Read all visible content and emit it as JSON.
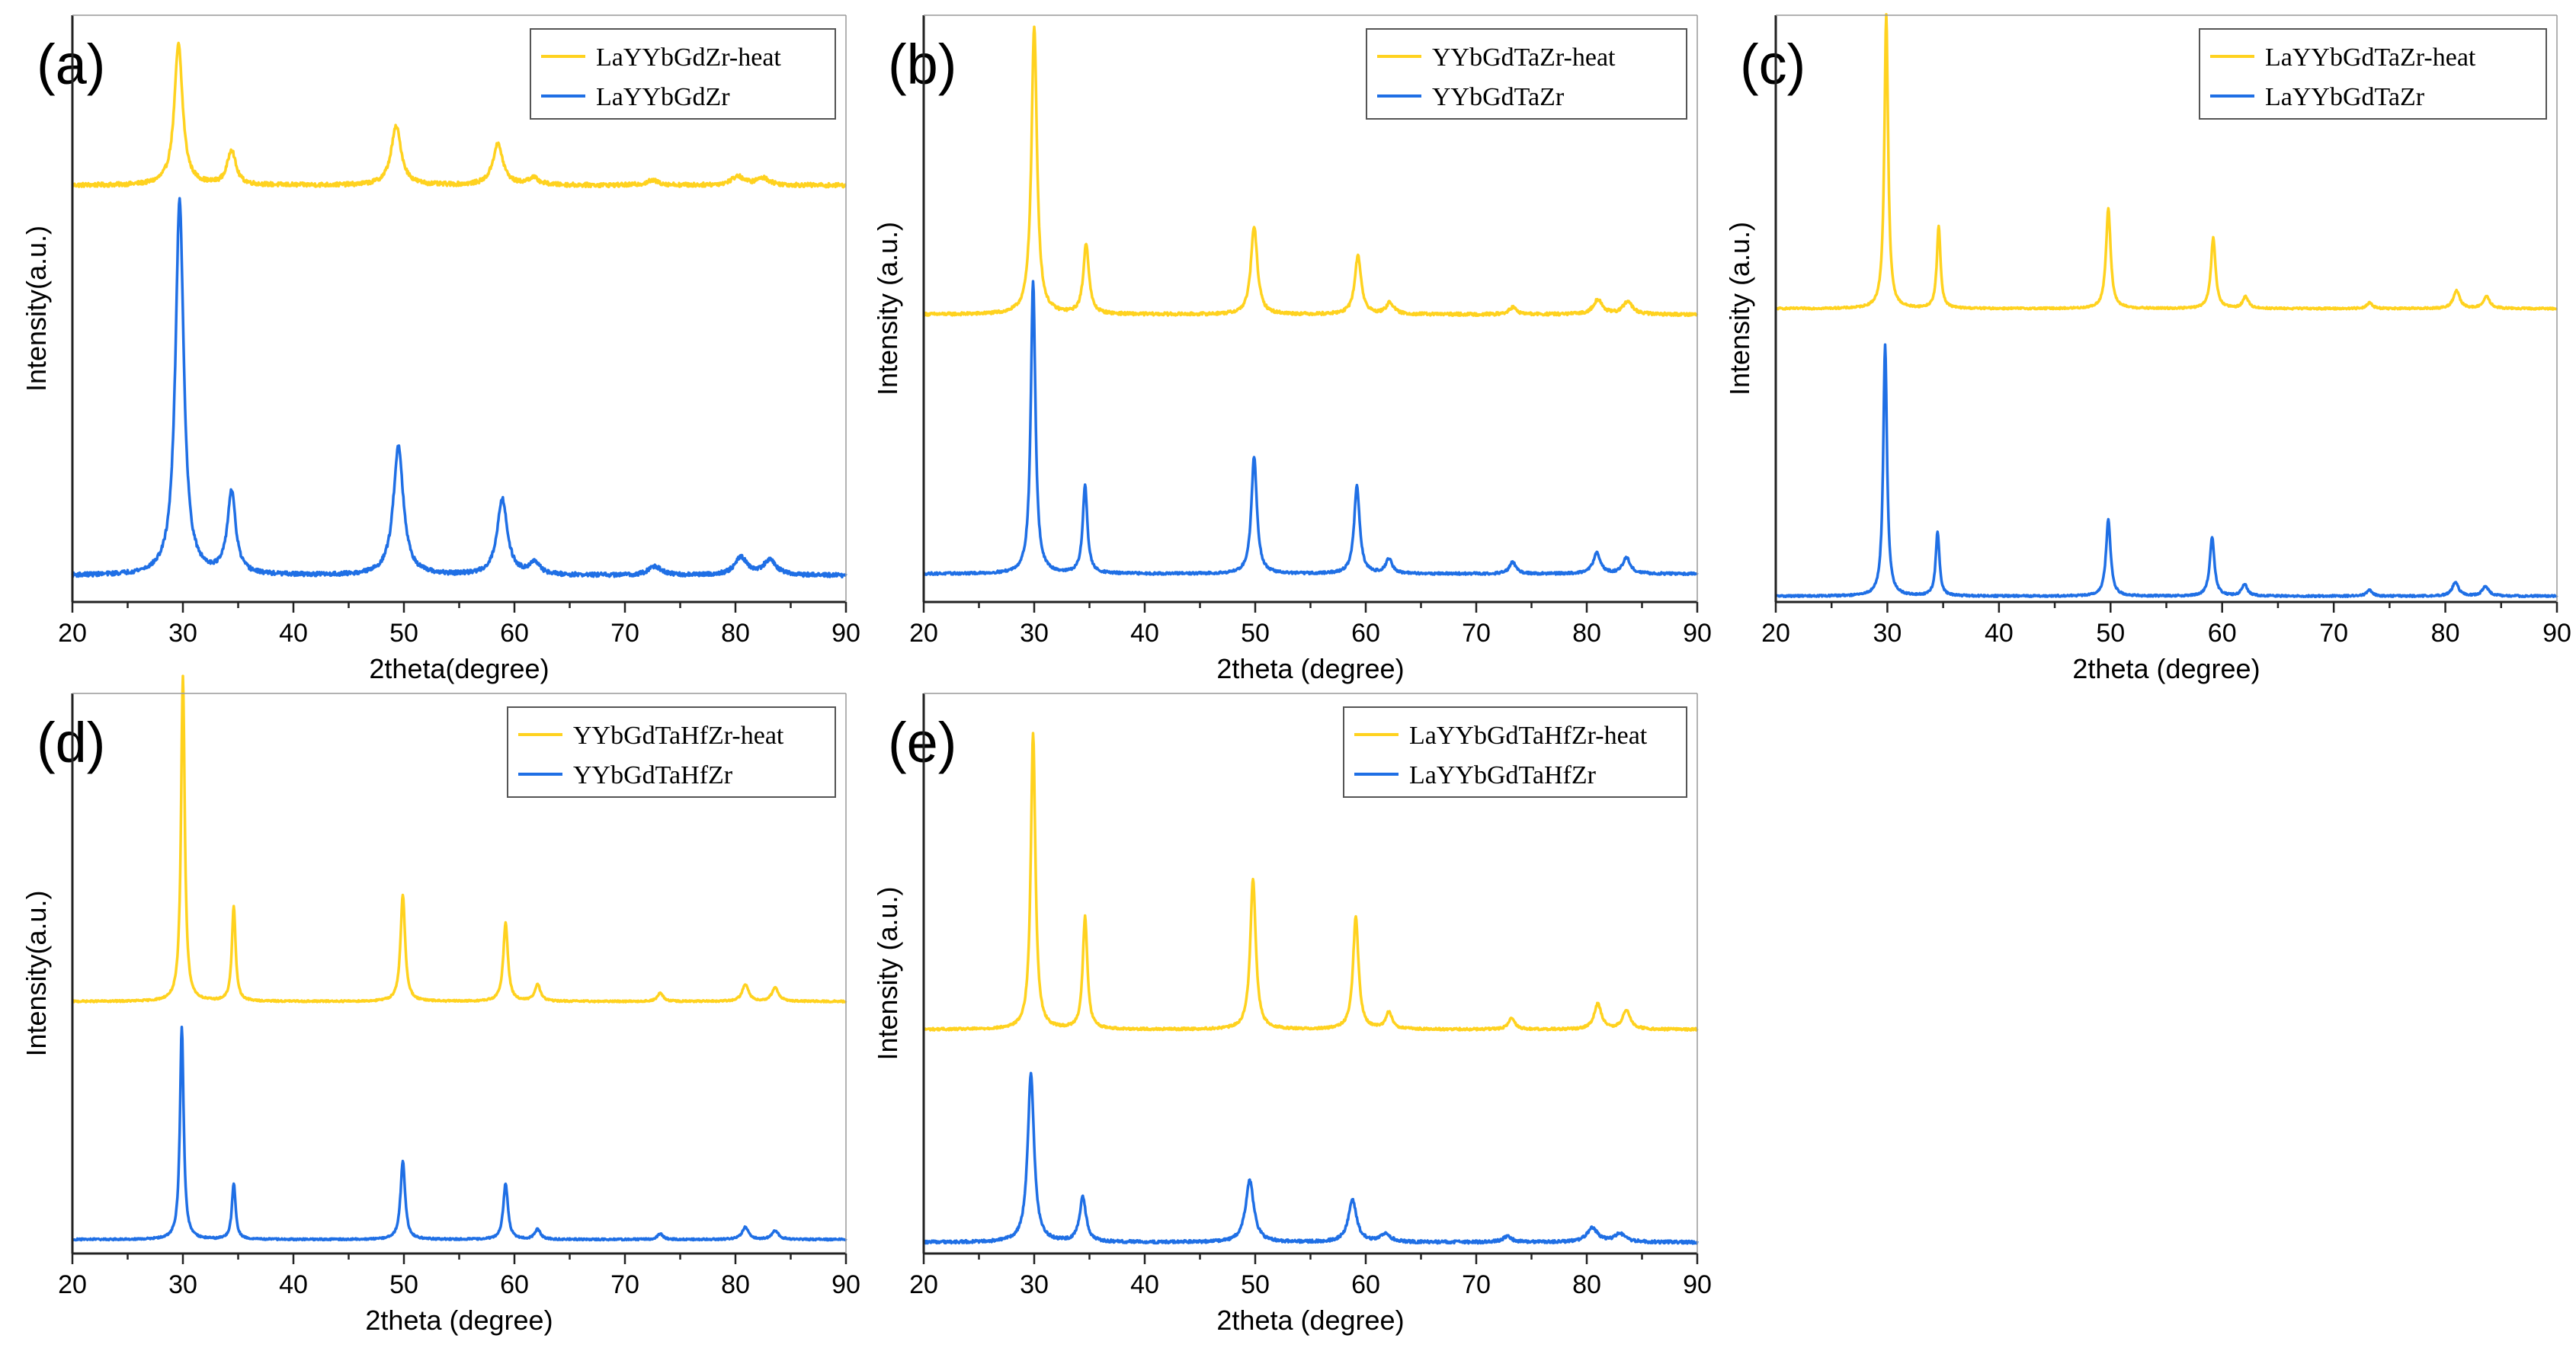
{
  "colors": {
    "heat": "#FFD21F",
    "asis": "#1F6FE5"
  },
  "chart_data": [
    {
      "id": "a",
      "panel_label": "(a)",
      "type": "line",
      "xlabel": "2theta(degree)",
      "ylabel": "Intensity(a.u.)",
      "xlim": [
        20,
        90
      ],
      "ylim": [
        0,
        100
      ],
      "grid": false,
      "legend": "top-right",
      "xticks": [
        "20",
        "30",
        "40",
        "50",
        "60",
        "70",
        "80",
        "90"
      ],
      "series": [
        {
          "name": "LaYYbGdZr-heat",
          "color_key": "heat",
          "baseline": 71.0,
          "noise": 0.35,
          "peaks": [
            [
              29.6,
              24,
              0.45
            ],
            [
              34.4,
              6,
              0.45
            ],
            [
              49.3,
              10,
              0.55
            ],
            [
              58.5,
              7,
              0.55
            ],
            [
              61.7,
              1.2,
              0.6
            ],
            [
              72.5,
              0.8,
              0.7
            ],
            [
              80.2,
              1.5,
              0.7
            ],
            [
              82.5,
              1.2,
              0.7
            ]
          ]
        },
        {
          "name": "LaYYbGdZr",
          "color_key": "asis",
          "baseline": 4.5,
          "noise": 0.35,
          "peaks": [
            [
              29.7,
              64,
              0.45
            ],
            [
              34.4,
              14,
              0.45
            ],
            [
              49.5,
              22,
              0.55
            ],
            [
              58.9,
              13,
              0.55
            ],
            [
              61.8,
              2,
              0.6
            ],
            [
              72.7,
              1.5,
              0.7
            ],
            [
              80.5,
              3,
              0.7
            ],
            [
              83.1,
              2.5,
              0.7
            ]
          ]
        }
      ]
    },
    {
      "id": "b",
      "panel_label": "(b)",
      "type": "line",
      "xlabel": "2theta (degree)",
      "ylabel": "Intensity (a.u.)",
      "xlim": [
        20,
        90
      ],
      "ylim": [
        0,
        100
      ],
      "grid": false,
      "legend": "top-right",
      "xticks": [
        "20",
        "30",
        "40",
        "50",
        "60",
        "70",
        "80",
        "90"
      ],
      "series": [
        {
          "name": "YYbGdTaZr-heat",
          "color_key": "heat",
          "baseline": 49.0,
          "noise": 0.25,
          "peaks": [
            [
              30.0,
              49,
              0.3
            ],
            [
              34.7,
              12,
              0.3
            ],
            [
              49.9,
              15,
              0.35
            ],
            [
              59.3,
              10,
              0.35
            ],
            [
              62.2,
              2,
              0.4
            ],
            [
              73.3,
              1.2,
              0.4
            ],
            [
              81.0,
              2.5,
              0.5
            ],
            [
              83.7,
              2.2,
              0.5
            ]
          ]
        },
        {
          "name": "YYbGdTaZr",
          "color_key": "asis",
          "baseline": 4.8,
          "noise": 0.2,
          "peaks": [
            [
              29.9,
              50,
              0.25
            ],
            [
              34.6,
              15,
              0.25
            ],
            [
              49.9,
              20,
              0.3
            ],
            [
              59.2,
              15,
              0.3
            ],
            [
              62.1,
              2.5,
              0.35
            ],
            [
              73.3,
              2,
              0.35
            ],
            [
              80.9,
              3.5,
              0.4
            ],
            [
              83.6,
              2.8,
              0.4
            ]
          ]
        }
      ]
    },
    {
      "id": "c",
      "panel_label": "(c)",
      "type": "line",
      "xlabel": "2theta (degree)",
      "ylabel": "Intensity (a.u.)",
      "xlim": [
        20,
        90
      ],
      "ylim": [
        0,
        100
      ],
      "grid": false,
      "legend": "top-right",
      "xticks": [
        "20",
        "30",
        "40",
        "50",
        "60",
        "70",
        "80",
        "90"
      ],
      "series": [
        {
          "name": "LaYYbGdTaZr-heat",
          "color_key": "heat",
          "baseline": 50.0,
          "noise": 0.15,
          "peaks": [
            [
              29.9,
              50,
              0.2
            ],
            [
              34.6,
              14,
              0.2
            ],
            [
              49.8,
              17,
              0.25
            ],
            [
              59.2,
              12,
              0.25
            ],
            [
              62.1,
              2,
              0.3
            ],
            [
              73.2,
              1,
              0.3
            ],
            [
              81.0,
              3,
              0.35
            ],
            [
              83.7,
              2,
              0.35
            ]
          ]
        },
        {
          "name": "LaYYbGdTaZr",
          "color_key": "asis",
          "baseline": 1.0,
          "noise": 0.15,
          "peaks": [
            [
              29.8,
              43,
              0.2
            ],
            [
              34.5,
              11,
              0.2
            ],
            [
              49.8,
              13,
              0.25
            ],
            [
              59.1,
              10,
              0.25
            ],
            [
              62.0,
              2,
              0.3
            ],
            [
              73.2,
              1,
              0.3
            ],
            [
              80.9,
              2.3,
              0.35
            ],
            [
              83.6,
              1.6,
              0.35
            ]
          ]
        }
      ]
    },
    {
      "id": "d",
      "panel_label": "(d)",
      "type": "line",
      "xlabel": "2theta (degree)",
      "ylabel": "Intensity(a.u.)",
      "xlim": [
        20,
        90
      ],
      "ylim": [
        0,
        100
      ],
      "grid": false,
      "legend": "top-right",
      "xticks": [
        "20",
        "30",
        "40",
        "50",
        "60",
        "70",
        "80",
        "90"
      ],
      "series": [
        {
          "name": "YYbGdTaHfZr-heat",
          "color_key": "heat",
          "baseline": 45.0,
          "noise": 0.15,
          "peaks": [
            [
              30.0,
              58,
              0.2
            ],
            [
              34.6,
              17,
              0.2
            ],
            [
              49.9,
              19,
              0.25
            ],
            [
              59.2,
              14,
              0.25
            ],
            [
              62.1,
              3,
              0.3
            ],
            [
              73.2,
              1.5,
              0.3
            ],
            [
              80.9,
              3,
              0.35
            ],
            [
              83.6,
              2.5,
              0.35
            ]
          ]
        },
        {
          "name": "YYbGdTaHfZr",
          "color_key": "asis",
          "baseline": 2.5,
          "noise": 0.15,
          "peaks": [
            [
              29.9,
              38,
              0.2
            ],
            [
              34.6,
              10,
              0.2
            ],
            [
              49.9,
              14,
              0.25
            ],
            [
              59.2,
              10,
              0.25
            ],
            [
              62.1,
              1.8,
              0.3
            ],
            [
              73.2,
              1,
              0.3
            ],
            [
              80.9,
              2.2,
              0.35
            ],
            [
              83.6,
              1.6,
              0.35
            ]
          ]
        }
      ]
    },
    {
      "id": "e",
      "panel_label": "(e)",
      "type": "line",
      "xlabel": "2theta (degree)",
      "ylabel": "Intensity (a.u.)",
      "xlim": [
        20,
        90
      ],
      "ylim": [
        0,
        100
      ],
      "grid": false,
      "legend": "top-right",
      "xticks": [
        "20",
        "30",
        "40",
        "50",
        "60",
        "70",
        "80",
        "90"
      ],
      "series": [
        {
          "name": "LaYYbGdTaHfZr-heat",
          "color_key": "heat",
          "baseline": 40.0,
          "noise": 0.2,
          "peaks": [
            [
              29.9,
              53,
              0.25
            ],
            [
              34.6,
              20,
              0.25
            ],
            [
              49.8,
              27,
              0.3
            ],
            [
              59.1,
              20,
              0.3
            ],
            [
              62.1,
              3,
              0.35
            ],
            [
              73.2,
              2,
              0.35
            ],
            [
              81.0,
              4.5,
              0.4
            ],
            [
              83.6,
              3.5,
              0.4
            ]
          ]
        },
        {
          "name": "LaYYbGdTaHfZr",
          "color_key": "asis",
          "baseline": 2.0,
          "noise": 0.25,
          "peaks": [
            [
              29.7,
              30,
              0.35
            ],
            [
              34.4,
              8,
              0.35
            ],
            [
              49.5,
              11,
              0.45
            ],
            [
              58.8,
              7.5,
              0.45
            ],
            [
              61.8,
              1.5,
              0.5
            ],
            [
              72.8,
              1,
              0.5
            ],
            [
              80.5,
              2.5,
              0.6
            ],
            [
              83.0,
              1.5,
              0.6
            ]
          ]
        }
      ]
    }
  ]
}
